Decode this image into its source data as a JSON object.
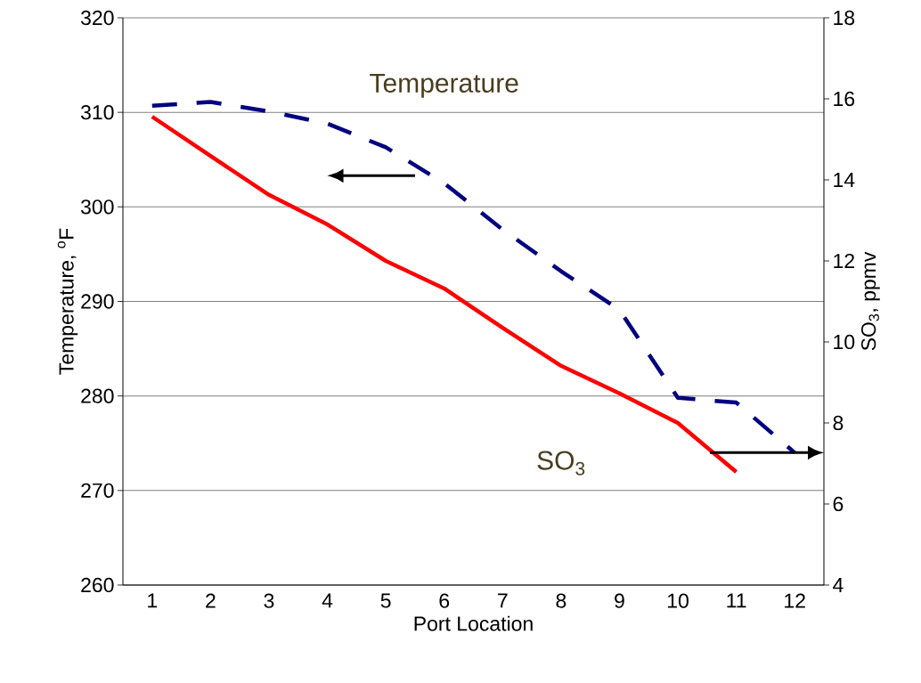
{
  "chart_data": {
    "type": "line",
    "xlabel": "Port Location",
    "ylabel": "Temperature,  $^{o}$F",
    "y2label": "SO$_{3}$, ppmv",
    "categories": [
      "1",
      "2",
      "3",
      "4",
      "5",
      "6",
      "7",
      "8",
      "9",
      "10",
      "11",
      "12"
    ],
    "ylim": [
      260,
      320
    ],
    "yticks": [
      260,
      270,
      280,
      290,
      300,
      310,
      320
    ],
    "y2lim": [
      4,
      18
    ],
    "y2ticks": [
      4,
      6,
      8,
      10,
      12,
      14,
      16,
      18
    ],
    "grid": "y",
    "marker": "none",
    "series": [
      {
        "name": "Temperature",
        "color": "#000080",
        "line_style": "dashed",
        "values": [
          310.7,
          311.1,
          310.1,
          308.8,
          306.3,
          302.5,
          297.6,
          293.2,
          289.1,
          279.8,
          279.3,
          274.0
        ]
      },
      {
        "name": "SO$_{3}$",
        "color": "#ff0000",
        "line_style": "solid",
        "axis": "y2",
        "values": [
          15.56,
          14.59,
          13.63,
          12.9,
          12.0,
          11.32,
          10.35,
          9.41,
          8.73,
          8.0,
          6.79,
          null
        ]
      }
    ]
  }
}
